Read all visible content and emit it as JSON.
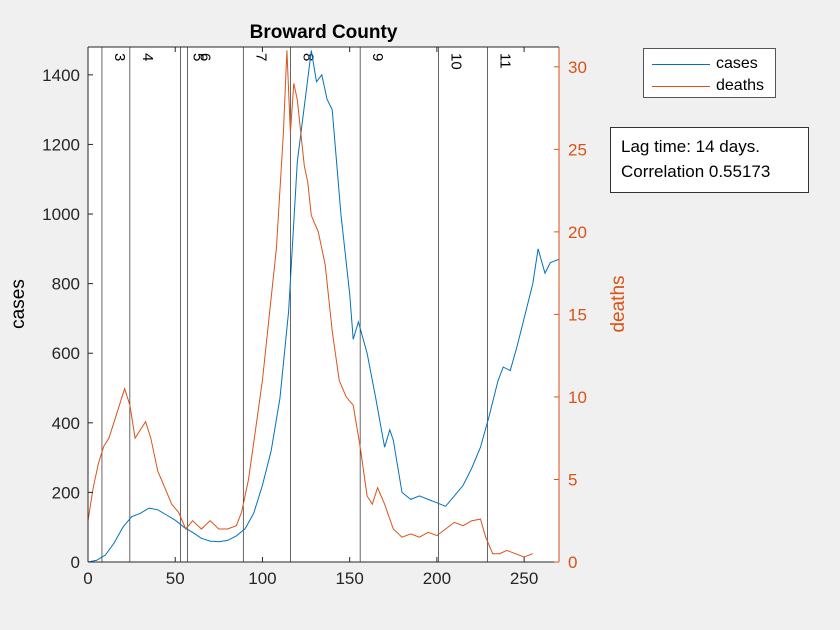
{
  "chart_data": {
    "type": "line",
    "title": "Broward County",
    "xlabel": "",
    "ylabel_left": "cases",
    "ylabel_right": "deaths",
    "xlim": [
      0,
      270
    ],
    "ylim_left": [
      0,
      1480
    ],
    "ylim_right": [
      0,
      31.2
    ],
    "x_ticks": [
      0,
      50,
      100,
      150,
      200,
      250
    ],
    "y_ticks_left": [
      0,
      200,
      400,
      600,
      800,
      1000,
      1200,
      1400
    ],
    "y_ticks_right": [
      0,
      5,
      10,
      15,
      20,
      25,
      30
    ],
    "legend_position": "outside-top-right",
    "colors": {
      "cases": "#0072bd",
      "deaths": "#d95319"
    },
    "vertical_lines": [
      {
        "x": 8,
        "label": "3"
      },
      {
        "x": 24,
        "label": "4"
      },
      {
        "x": 53,
        "label": "5"
      },
      {
        "x": 57,
        "label": "6"
      },
      {
        "x": 89,
        "label": "7"
      },
      {
        "x": 116,
        "label": "8"
      },
      {
        "x": 156,
        "label": "9"
      },
      {
        "x": 201,
        "label": "10"
      },
      {
        "x": 229,
        "label": "11"
      }
    ],
    "series": [
      {
        "name": "cases",
        "axis": "left",
        "x": [
          0,
          5,
          10,
          15,
          20,
          25,
          30,
          35,
          40,
          45,
          50,
          55,
          60,
          65,
          70,
          75,
          80,
          85,
          90,
          95,
          100,
          105,
          110,
          115,
          120,
          125,
          128,
          131,
          134,
          137,
          140,
          145,
          150,
          152,
          155,
          160,
          165,
          170,
          173,
          175,
          180,
          185,
          190,
          195,
          200,
          205,
          210,
          215,
          220,
          225,
          230,
          235,
          238,
          242,
          246,
          250,
          255,
          258,
          262,
          265,
          270
        ],
        "y": [
          0,
          5,
          20,
          55,
          100,
          130,
          140,
          155,
          150,
          135,
          120,
          100,
          85,
          68,
          60,
          58,
          62,
          75,
          95,
          140,
          220,
          320,
          470,
          720,
          1150,
          1350,
          1470,
          1380,
          1400,
          1330,
          1300,
          1000,
          770,
          640,
          690,
          600,
          470,
          330,
          380,
          350,
          200,
          180,
          190,
          180,
          170,
          160,
          190,
          220,
          270,
          330,
          420,
          520,
          560,
          550,
          620,
          700,
          800,
          900,
          830,
          860,
          870
        ]
      },
      {
        "name": "deaths",
        "axis": "right",
        "x": [
          0,
          3,
          6,
          9,
          12,
          15,
          18,
          21,
          24,
          27,
          30,
          33,
          36,
          40,
          44,
          48,
          52,
          56,
          60,
          65,
          70,
          75,
          80,
          85,
          88,
          92,
          96,
          100,
          104,
          108,
          112,
          114,
          116,
          118,
          120,
          122,
          124,
          126,
          128,
          132,
          136,
          140,
          144,
          148,
          152,
          156,
          160,
          163,
          166,
          170,
          175,
          180,
          185,
          190,
          195,
          200,
          205,
          210,
          215,
          220,
          225,
          228,
          232,
          236,
          240,
          245,
          250,
          255
        ],
        "y": [
          2.5,
          4.5,
          6,
          7,
          7.5,
          8.5,
          9.5,
          10.5,
          9.5,
          7.5,
          8,
          8.5,
          7.5,
          5.5,
          4.5,
          3.5,
          3,
          2,
          2.5,
          2,
          2.5,
          2,
          2,
          2.2,
          3,
          5,
          8,
          11,
          15,
          19,
          26,
          31,
          26,
          29,
          28,
          26,
          24,
          23,
          21,
          20,
          18,
          14,
          11,
          10,
          9.5,
          7,
          4,
          3.5,
          4.5,
          3.5,
          2,
          1.5,
          1.7,
          1.5,
          1.8,
          1.6,
          2,
          2.4,
          2.2,
          2.5,
          2.6,
          1.5,
          0.5,
          0.5,
          0.7,
          0.5,
          0.3,
          0.5
        ]
      }
    ]
  },
  "annotation": {
    "line1": "Lag time: 14 days.",
    "line2": "Correlation 0.55173"
  }
}
